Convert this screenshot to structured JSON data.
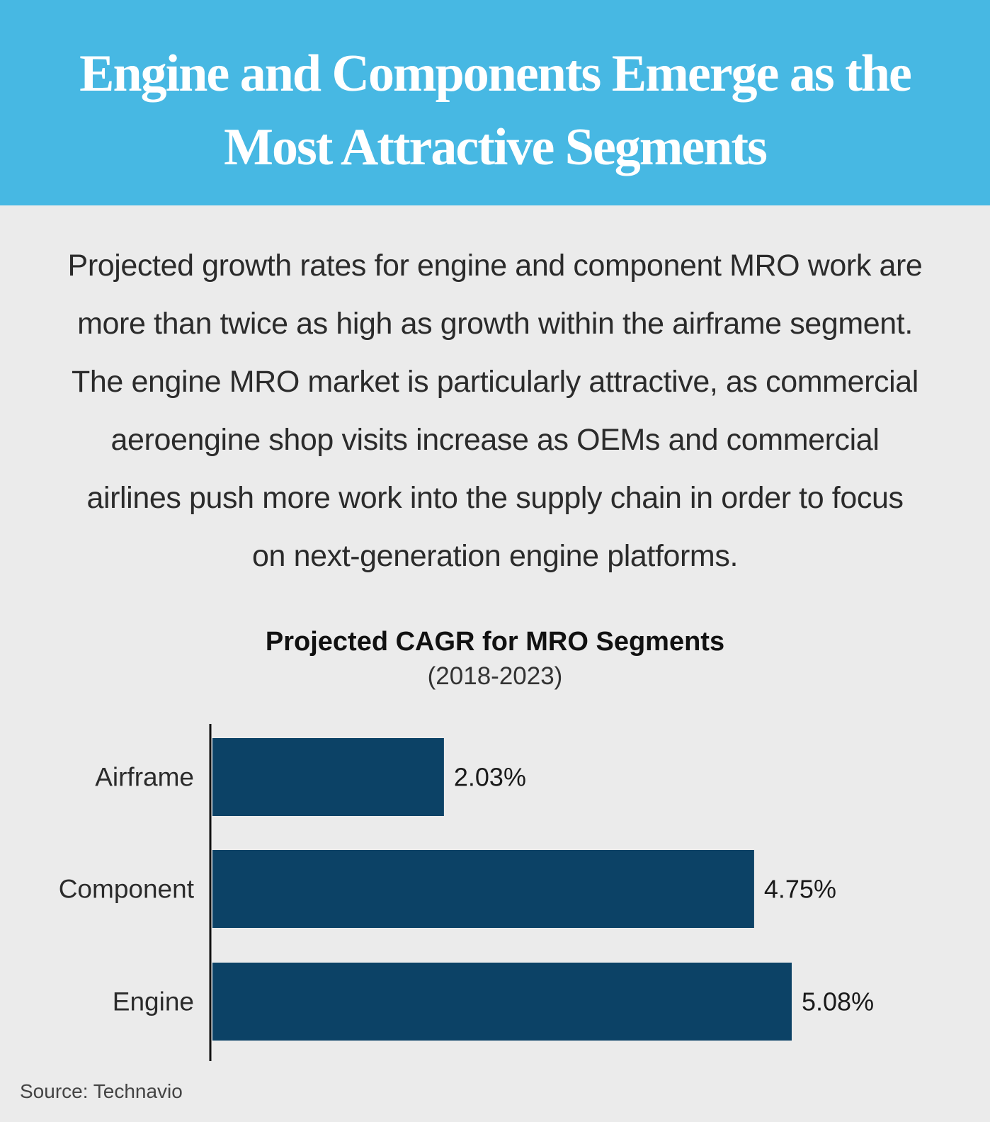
{
  "header": {
    "title": "Engine and Components Emerge as the Most Attractive Segments"
  },
  "intro": {
    "text": "Projected growth rates for engine and component MRO work are more than twice as high as growth within the airframe segment. The engine MRO market is particularly attractive, as commercial aeroengine shop visits increase as OEMs and commercial airlines push more work into the supply chain in order to focus on next-generation engine platforms."
  },
  "chart_data": {
    "type": "bar",
    "orientation": "horizontal",
    "title": "Projected CAGR for MRO Segments",
    "subtitle": "(2018-2023)",
    "categories": [
      "Airframe",
      "Component",
      "Engine"
    ],
    "values": [
      2.03,
      4.75,
      5.08
    ],
    "value_labels": [
      "2.03%",
      "4.75%",
      "5.08%"
    ],
    "unit": "%",
    "xlim": [
      0,
      6
    ],
    "grid": false,
    "bar_color": "#0c4266"
  },
  "footer": {
    "source": "Source: Technavio"
  },
  "colors": {
    "banner": "#47b8e3",
    "background": "#ebebeb",
    "bar": "#0c4266"
  }
}
